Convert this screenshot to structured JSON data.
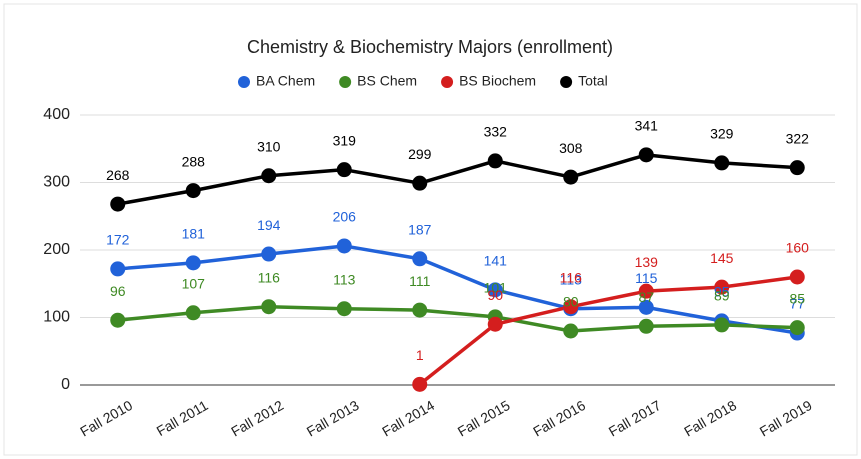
{
  "chart_data": {
    "type": "line",
    "title": "Chemistry & Biochemistry Majors (enrollment)",
    "categories": [
      "Fall 2010",
      "Fall 2011",
      "Fall 2012",
      "Fall 2013",
      "Fall 2014",
      "Fall 2015",
      "Fall 2016",
      "Fall 2017",
      "Fall 2018",
      "Fall 2019"
    ],
    "series": [
      {
        "name": "BA Chem",
        "color": "#2162d9",
        "values": [
          172,
          181,
          194,
          206,
          187,
          141,
          113,
          115,
          95,
          77
        ]
      },
      {
        "name": "BS Chem",
        "color": "#3f8a24",
        "values": [
          96,
          107,
          116,
          113,
          111,
          101,
          80,
          87,
          89,
          85
        ]
      },
      {
        "name": "BS Biochem",
        "color": "#d41e1e",
        "values": [
          null,
          null,
          null,
          null,
          1,
          90,
          116,
          139,
          145,
          160
        ]
      },
      {
        "name": "Total",
        "color": "#000000",
        "values": [
          268,
          288,
          310,
          319,
          299,
          332,
          308,
          341,
          329,
          322
        ]
      }
    ],
    "ylim": [
      0,
      400
    ],
    "yticks": [
      0,
      100,
      200,
      300,
      400
    ],
    "grid": true,
    "legend": "top"
  }
}
